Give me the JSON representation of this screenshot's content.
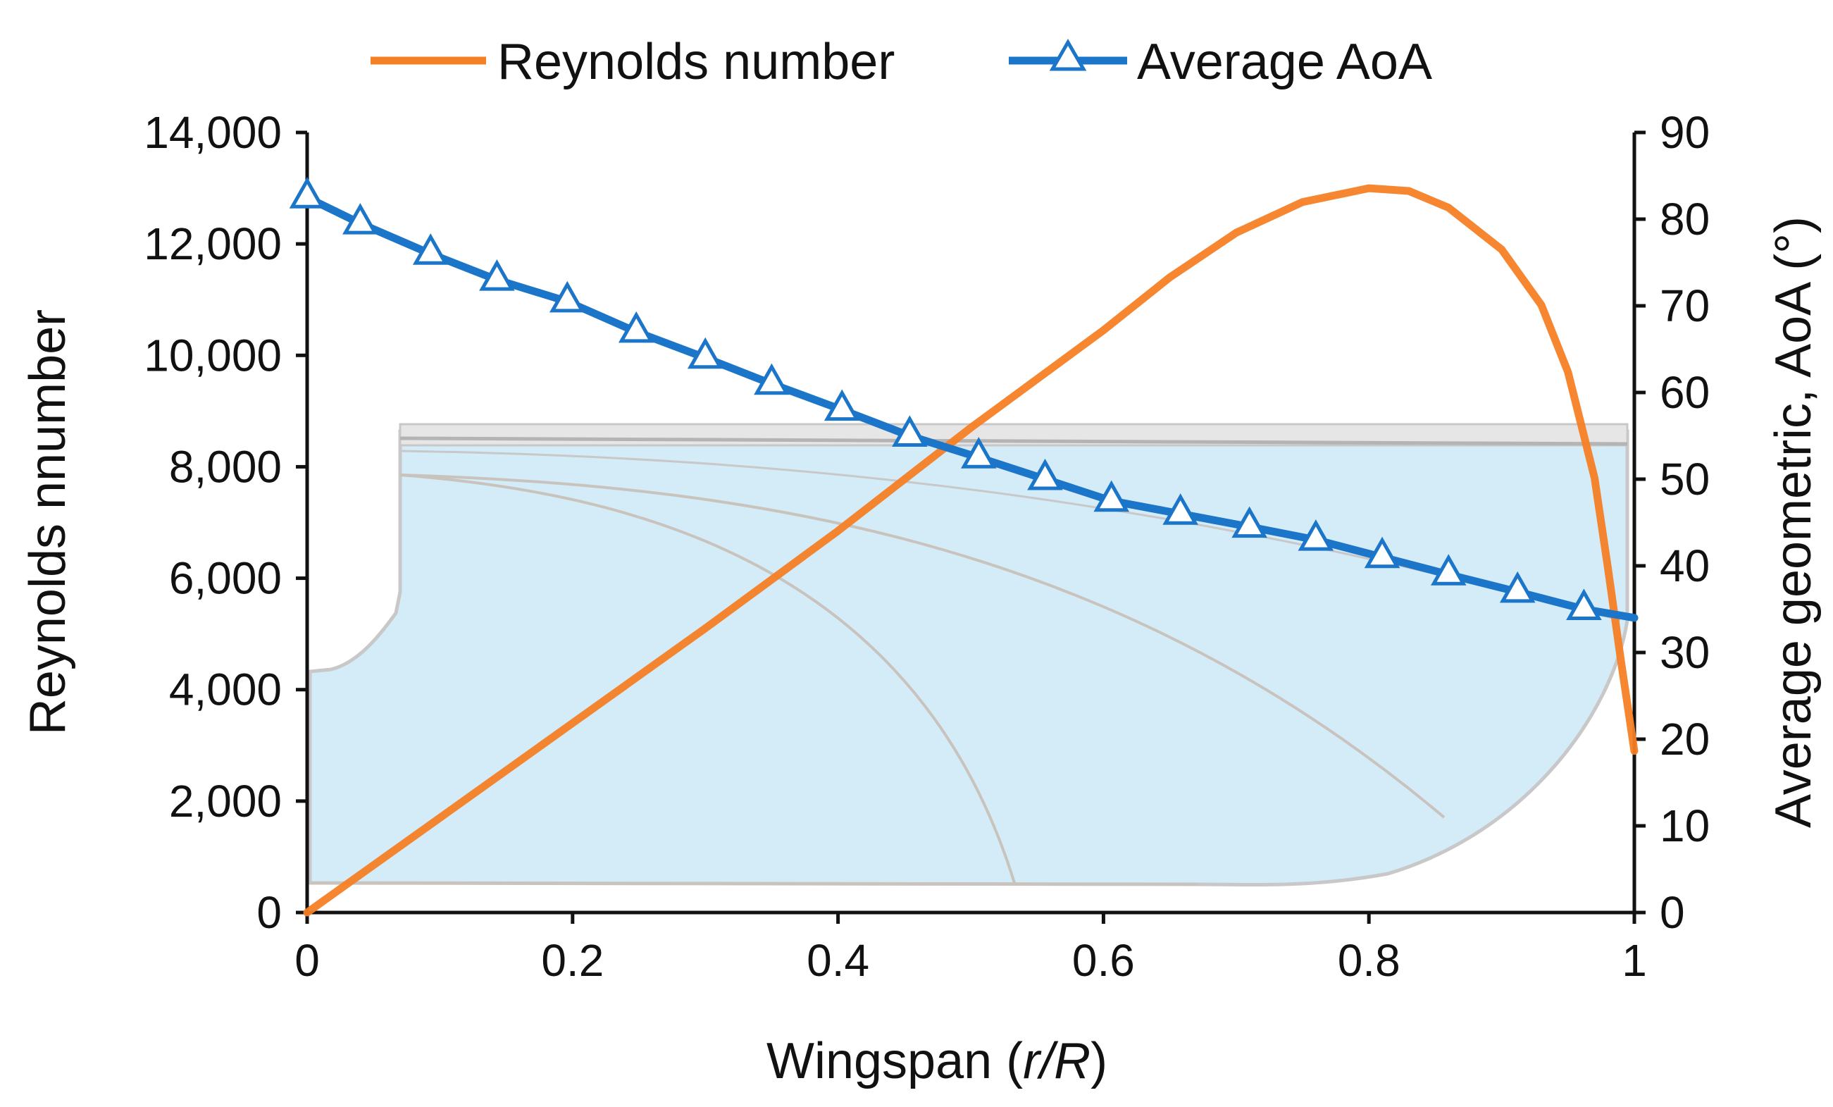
{
  "chart_data": {
    "type": "line",
    "title": "",
    "legend_position": "top-center",
    "grid": false,
    "xlabel": {
      "prefix": "Wingspan (",
      "italic": "r/R",
      "suffix": ")"
    },
    "ylabel_left": "Reynolds nnumber",
    "ylabel_right": "Average geometric, AoA (°)",
    "xlim": [
      0,
      1
    ],
    "ylim_left": [
      0,
      14000
    ],
    "ylim_right": [
      0,
      90
    ],
    "x_ticks": [
      0,
      0.2,
      0.4,
      0.6,
      0.8,
      1
    ],
    "x_tick_labels": [
      "0",
      "0.2",
      "0.4",
      "0.6",
      "0.8",
      "1"
    ],
    "y_left_ticks": [
      0,
      2000,
      4000,
      6000,
      8000,
      10000,
      12000,
      14000
    ],
    "y_left_tick_labels": [
      "0",
      "2,000",
      "4,000",
      "6,000",
      "8,000",
      "10,000",
      "12,000",
      "14,000"
    ],
    "y_right_ticks": [
      0,
      10,
      20,
      30,
      40,
      50,
      60,
      70,
      80,
      90
    ],
    "y_right_tick_labels": [
      "0",
      "10",
      "20",
      "30",
      "40",
      "50",
      "60",
      "70",
      "80",
      "90"
    ],
    "series": [
      {
        "name": "Reynolds number",
        "axis": "left",
        "color": "#F58025",
        "marker": "none",
        "x": [
          0,
          0.1,
          0.2,
          0.3,
          0.4,
          0.5,
          0.6,
          0.65,
          0.7,
          0.75,
          0.8,
          0.83,
          0.86,
          0.9,
          0.93,
          0.95,
          0.97,
          0.98,
          0.99,
          1.0
        ],
        "values": [
          0,
          1700,
          3400,
          5100,
          6850,
          8700,
          10450,
          11400,
          12200,
          12750,
          13000,
          12950,
          12650,
          11900,
          10900,
          9700,
          7800,
          6200,
          4500,
          2900
        ]
      },
      {
        "name": "Average AoA",
        "axis": "right",
        "color": "#1B75C9",
        "marker": "triangle",
        "x": [
          0,
          0.04,
          0.093,
          0.143,
          0.196,
          0.248,
          0.3,
          0.35,
          0.403,
          0.454,
          0.506,
          0.556,
          0.606,
          0.658,
          0.71,
          0.76,
          0.81,
          0.86,
          0.912,
          0.962,
          1.0
        ],
        "values": [
          82.5,
          79.5,
          76,
          73,
          70.5,
          67,
          64,
          61,
          58,
          55,
          52.5,
          50,
          47.5,
          46,
          44.5,
          43,
          41,
          39,
          37,
          35,
          34
        ]
      }
    ]
  }
}
